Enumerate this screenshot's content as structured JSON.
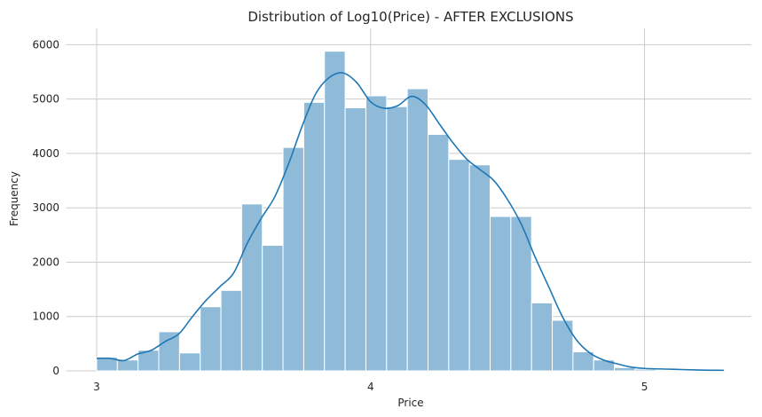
{
  "chart_data": {
    "type": "bar",
    "title": "Distribution of Log10(Price) - AFTER EXCLUSIONS",
    "xlabel": "Price",
    "ylabel": "Frequency",
    "xlim": [
      2.89,
      5.39
    ],
    "ylim": [
      0,
      6300
    ],
    "xticks": [
      3,
      4,
      5
    ],
    "yticks": [
      0,
      1000,
      2000,
      3000,
      4000,
      5000,
      6000
    ],
    "grid": true,
    "bin_start": 3.0,
    "bin_width": 0.0756,
    "values": [
      250,
      200,
      380,
      720,
      330,
      1180,
      1480,
      3070,
      2310,
      4110,
      4940,
      5880,
      4840,
      5060,
      4860,
      5190,
      4350,
      3890,
      3790,
      2840,
      2840,
      1250,
      930,
      350,
      200,
      60,
      30,
      15,
      8,
      5,
      3,
      2
    ],
    "kde": {
      "x": [
        3.0,
        3.05,
        3.1,
        3.15,
        3.2,
        3.25,
        3.3,
        3.35,
        3.4,
        3.45,
        3.5,
        3.55,
        3.6,
        3.65,
        3.7,
        3.75,
        3.8,
        3.85,
        3.9,
        3.95,
        4.0,
        4.05,
        4.1,
        4.15,
        4.2,
        4.25,
        4.3,
        4.35,
        4.4,
        4.45,
        4.5,
        4.55,
        4.6,
        4.65,
        4.7,
        4.75,
        4.8,
        4.85,
        4.9,
        4.95,
        5.0,
        5.1,
        5.2,
        5.29
      ],
      "y": [
        230,
        230,
        190,
        310,
        380,
        540,
        680,
        1000,
        1300,
        1550,
        1800,
        2350,
        2800,
        3200,
        3800,
        4500,
        5100,
        5400,
        5480,
        5300,
        4950,
        4830,
        4880,
        5050,
        4900,
        4550,
        4200,
        3900,
        3700,
        3500,
        3150,
        2700,
        2100,
        1550,
        1000,
        580,
        330,
        200,
        130,
        70,
        45,
        30,
        15,
        10
      ]
    },
    "colors": {
      "bar_fill": "#8fbbd9",
      "bar_edge": "#ffffff",
      "kde_line": "#1f77b4",
      "grid": "#cccccc"
    }
  }
}
